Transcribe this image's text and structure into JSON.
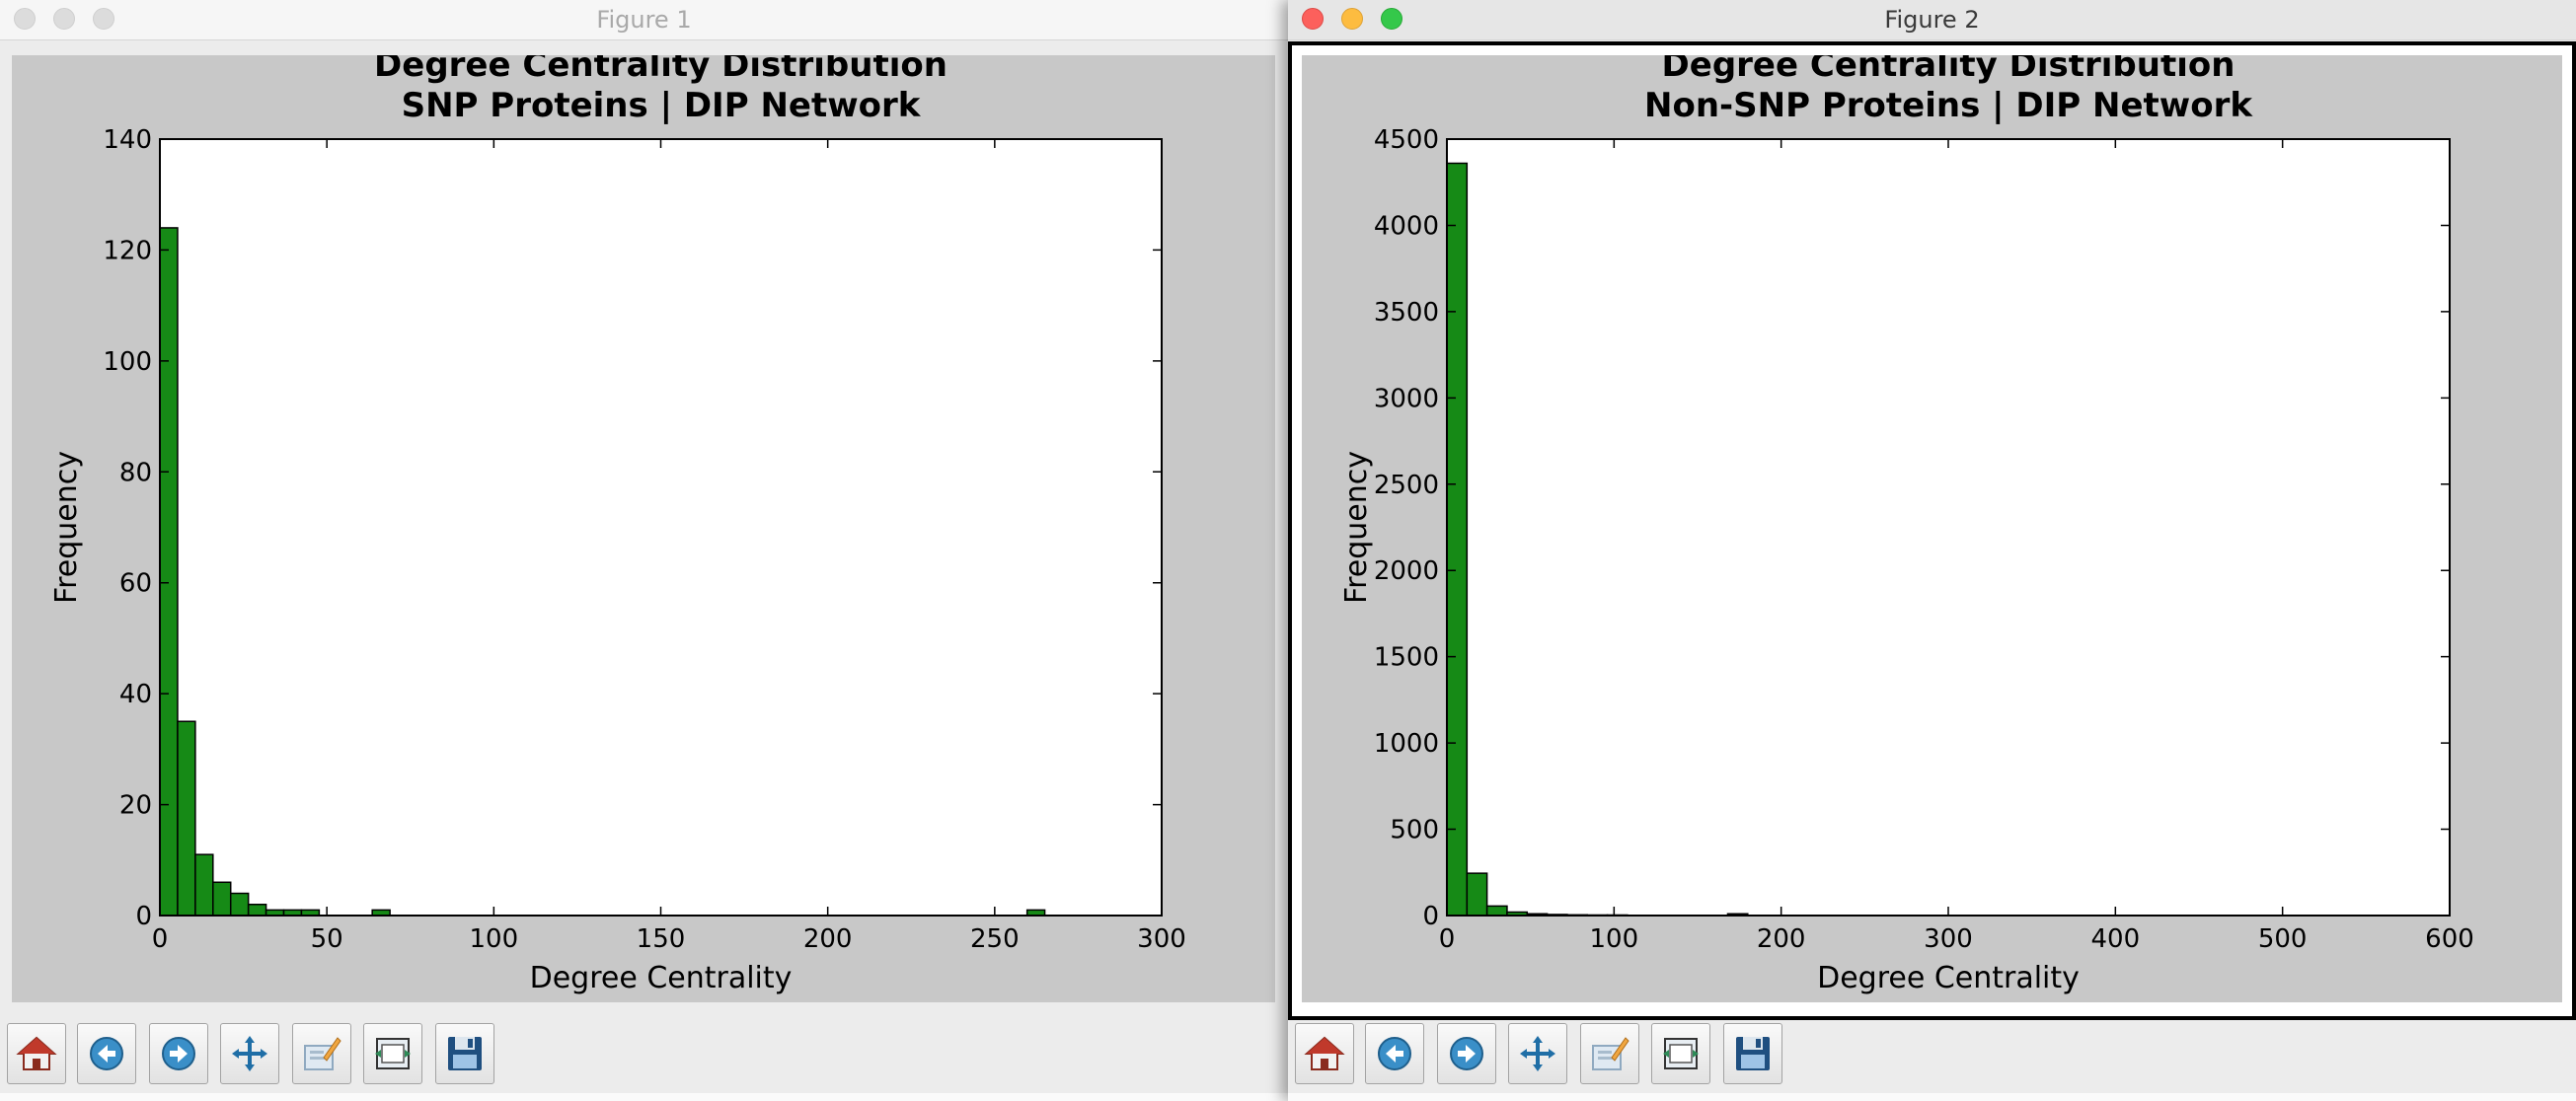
{
  "windows": [
    {
      "title": "Figure 1",
      "active": false,
      "toolbar": [
        "home-icon",
        "back-arrow-icon",
        "forward-arrow-icon",
        "pan-move-icon",
        "zoom-rectangle-icon",
        "subplot-config-icon",
        "save-disk-icon"
      ]
    },
    {
      "title": "Figure 2",
      "active": true,
      "toolbar": [
        "home-icon",
        "back-arrow-icon",
        "forward-arrow-icon",
        "pan-move-icon",
        "zoom-rectangle-icon",
        "subplot-config-icon",
        "save-disk-icon"
      ]
    }
  ],
  "colors": {
    "bar_fill": "#168a16",
    "bar_edge": "#000000",
    "figure_bg": "#c8c8c8",
    "axes_bg": "#ffffff",
    "close": "#fc605c",
    "minimize": "#fdbc40",
    "maximize": "#34c84a"
  },
  "chart_data": [
    {
      "type": "bar",
      "title_lines": [
        "Degree Centrality Distribution",
        "SNP Proteins | DIP Network"
      ],
      "xlabel": "Degree Centrality",
      "ylabel": "Frequency",
      "xlim": [
        0,
        300
      ],
      "ylim": [
        0,
        140
      ],
      "xticks": [
        "0",
        "50",
        "100",
        "150",
        "200",
        "250",
        "300"
      ],
      "yticks": [
        "0",
        "20",
        "40",
        "60",
        "80",
        "100",
        "120",
        "140"
      ],
      "bin_width": 5.3,
      "bins": [
        {
          "x0": 0,
          "value": 124
        },
        {
          "x0": 5.3,
          "value": 35
        },
        {
          "x0": 10.6,
          "value": 11
        },
        {
          "x0": 15.9,
          "value": 6
        },
        {
          "x0": 21.2,
          "value": 4
        },
        {
          "x0": 26.5,
          "value": 2
        },
        {
          "x0": 31.8,
          "value": 1
        },
        {
          "x0": 37.1,
          "value": 1
        },
        {
          "x0": 42.4,
          "value": 1
        },
        {
          "x0": 63.6,
          "value": 1
        },
        {
          "x0": 259.7,
          "value": 1
        }
      ],
      "grid": false
    },
    {
      "type": "bar",
      "title_lines": [
        "Degree Centrality Distribution",
        "Non-SNP Proteins | DIP Network"
      ],
      "xlabel": "Degree Centrality",
      "ylabel": "Frequency",
      "xlim": [
        0,
        600
      ],
      "ylim": [
        0,
        4500
      ],
      "xticks": [
        "0",
        "100",
        "200",
        "300",
        "400",
        "500",
        "600"
      ],
      "yticks": [
        "0",
        "500",
        "1000",
        "1500",
        "2000",
        "2500",
        "3000",
        "3500",
        "4000",
        "4500"
      ],
      "bin_width": 12,
      "bins": [
        {
          "x0": 0,
          "value": 4360
        },
        {
          "x0": 12,
          "value": 245
        },
        {
          "x0": 24,
          "value": 55
        },
        {
          "x0": 36,
          "value": 20
        },
        {
          "x0": 48,
          "value": 10
        },
        {
          "x0": 60,
          "value": 6
        },
        {
          "x0": 72,
          "value": 4
        },
        {
          "x0": 84,
          "value": 3
        },
        {
          "x0": 96,
          "value": 3
        },
        {
          "x0": 168,
          "value": 10
        }
      ],
      "grid": false
    }
  ]
}
